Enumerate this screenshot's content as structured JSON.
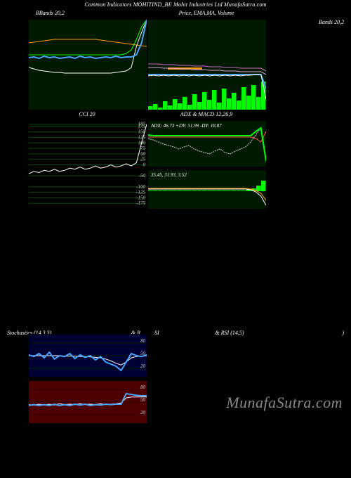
{
  "header": {
    "text": "Common Indicators MOHITIND_BE Mohit Industries Ltd MunafaSutra.com",
    "fontsize": 8
  },
  "watermark": {
    "text": "MunafaSutra.com",
    "fontsize": 22,
    "color": "#888888"
  },
  "global": {
    "background": "#000000",
    "text_color": "#ffffff",
    "font": "Georgia, serif",
    "font_style": "italic"
  },
  "panels": {
    "bb": {
      "title": "BBands 20,2",
      "width": 168,
      "height": 128,
      "bg": "#001a00",
      "series": {
        "candles": {
          "color": "#1e90ff",
          "width": 2
        },
        "upper": {
          "color": "#ffffff",
          "width": 1,
          "values": [
            60,
            58,
            56,
            55,
            54,
            53,
            53,
            52,
            52,
            52,
            52,
            52,
            52,
            52,
            52,
            52,
            52,
            53,
            54,
            55,
            60,
            90,
            110,
            128
          ]
        },
        "lower": {
          "color": "#ff9900",
          "width": 1,
          "values": [
            95,
            96,
            97,
            98,
            99,
            100,
            100,
            100,
            100,
            100,
            100,
            100,
            100,
            100,
            99,
            98,
            97,
            96,
            95,
            94,
            93,
            92,
            91,
            90
          ]
        },
        "mid": {
          "color": "#00ff00",
          "width": 1,
          "values": [
            78,
            78,
            78,
            78,
            78,
            78,
            78,
            78,
            78,
            78,
            78,
            78,
            78,
            78,
            78,
            78,
            78,
            78,
            78,
            80,
            85,
            100,
            118,
            128
          ]
        },
        "close": {
          "color": "#4aa3ff",
          "width": 2,
          "values": [
            74,
            75,
            73,
            76,
            74,
            75,
            73,
            74,
            75,
            73,
            76,
            74,
            75,
            73,
            74,
            75,
            74,
            76,
            74,
            75,
            75,
            78,
            95,
            128
          ]
        }
      }
    },
    "ma": {
      "title": "Price, EMA,MA, Volume",
      "width": 168,
      "height": 128,
      "bg": "#001a00",
      "series": {
        "price": {
          "color": "#ffffff",
          "width": 1,
          "values": [
            48,
            49,
            48,
            49,
            48,
            49,
            48,
            49,
            48,
            49,
            48,
            49,
            48,
            49,
            48,
            49,
            48,
            49,
            48,
            49,
            49,
            50,
            50,
            15
          ]
        },
        "ema": {
          "color": "#4aa3ff",
          "width": 2,
          "values": [
            50,
            50,
            50,
            50,
            50,
            50,
            50,
            50,
            50,
            50,
            50,
            50,
            50,
            50,
            50,
            50,
            50,
            50,
            50,
            50,
            50,
            50,
            50,
            30
          ]
        },
        "ma1": {
          "color": "#dda0dd",
          "width": 1,
          "values": [
            60,
            60,
            60,
            59,
            59,
            59,
            58,
            58,
            58,
            57,
            57,
            57,
            56,
            56,
            56,
            55,
            55,
            55,
            54,
            54,
            54,
            54,
            54,
            50
          ]
        },
        "ma2": {
          "color": "#cc66cc",
          "width": 1,
          "values": [
            65,
            65,
            65,
            64,
            64,
            64,
            63,
            63,
            63,
            62,
            62,
            62,
            61,
            61,
            61,
            60,
            60,
            60,
            59,
            59,
            59,
            59,
            59,
            55
          ]
        }
      },
      "volume": {
        "color": "#00ff00",
        "values": [
          5,
          8,
          3,
          12,
          6,
          15,
          9,
          18,
          7,
          22,
          11,
          25,
          14,
          28,
          10,
          30,
          16,
          24,
          13,
          32,
          20,
          35,
          18,
          40
        ]
      },
      "vol_bar": {
        "color": "#ff9900",
        "start": 4,
        "end": 11,
        "y": 68
      }
    },
    "cci": {
      "title": "CCI 20",
      "width": 168,
      "height": 125,
      "bg": "#000000",
      "gridlines": [
        -175,
        -150,
        -125,
        -100,
        -50,
        0,
        25,
        50,
        75,
        100,
        125,
        150,
        175,
        185
      ],
      "grid_color": "#0a4a0a",
      "series": {
        "color": "#ffffff",
        "width": 1,
        "values": [
          -40,
          -30,
          -35,
          -25,
          -30,
          -20,
          -30,
          -25,
          -15,
          -20,
          -10,
          -20,
          -15,
          -5,
          -15,
          -10,
          0,
          -10,
          -5,
          5,
          -5,
          10,
          100,
          185
        ]
      }
    },
    "adx": {
      "title": "ADX & MACD 12,26,9",
      "width": 168,
      "height": 65,
      "bg": "#001a00",
      "label": "ADX: 46.73 +DY: 51.99 -DY: 18.87",
      "series": {
        "adx": {
          "color": "#cccccc",
          "width": 1,
          "dash": "2,1",
          "values": [
            40,
            38,
            35,
            32,
            30,
            28,
            25,
            28,
            30,
            25,
            22,
            20,
            18,
            22,
            25,
            20,
            18,
            22,
            25,
            28,
            35,
            45,
            55,
            10
          ]
        },
        "plusdi": {
          "color": "#00ff00",
          "width": 2,
          "values": [
            45,
            44,
            44,
            44,
            44,
            44,
            44,
            44,
            44,
            44,
            44,
            44,
            44,
            44,
            44,
            44,
            44,
            44,
            44,
            44,
            44,
            50,
            55,
            8
          ]
        },
        "minusdi": {
          "color": "#ff5555",
          "width": 1,
          "values": [
            42,
            42,
            42,
            42,
            42,
            42,
            42,
            42,
            42,
            42,
            42,
            42,
            42,
            42,
            42,
            42,
            42,
            42,
            42,
            42,
            42,
            40,
            35,
            50
          ]
        }
      }
    },
    "macd": {
      "width": 168,
      "height": 55,
      "bg": "#001a00",
      "label": "35.45, 31.93, 3.52",
      "series": {
        "macd": {
          "color": "#ffffff",
          "width": 1,
          "values": [
            28,
            28,
            28,
            28,
            28,
            28,
            28,
            28,
            28,
            28,
            28,
            28,
            28,
            28,
            28,
            28,
            28,
            28,
            28,
            28,
            27,
            24,
            18,
            5
          ]
        },
        "signal": {
          "color": "#ff9900",
          "width": 1,
          "values": [
            29,
            29,
            29,
            29,
            29,
            29,
            29,
            29,
            29,
            29,
            29,
            29,
            29,
            29,
            29,
            29,
            29,
            29,
            29,
            29,
            28,
            26,
            22,
            12
          ]
        }
      },
      "hist": {
        "color_pos": "#00ff00",
        "color_neg": "#ff0000",
        "values": [
          1,
          1,
          1,
          1,
          1,
          1,
          1,
          1,
          1,
          1,
          1,
          1,
          1,
          1,
          1,
          1,
          1,
          1,
          1,
          1,
          2,
          4,
          8,
          15
        ]
      }
    },
    "stoch": {
      "title_left": "Stochastics (14,3,3)",
      "title_right": "& RSI (14,5)",
      "width": 168,
      "height": 60,
      "bg": "#000033",
      "gridlines": [
        20,
        50,
        80
      ],
      "series": {
        "k": {
          "color": "#4aa3ff",
          "width": 2,
          "values": [
            52,
            48,
            55,
            45,
            58,
            42,
            50,
            48,
            55,
            43,
            52,
            46,
            50,
            40,
            48,
            35,
            30,
            25,
            15,
            35,
            55,
            50,
            48,
            52
          ]
        },
        "d": {
          "color": "#ffffff",
          "width": 1,
          "values": [
            50,
            50,
            50,
            50,
            50,
            50,
            50,
            49,
            49,
            49,
            48,
            48,
            47,
            46,
            45,
            42,
            38,
            32,
            28,
            35,
            45,
            48,
            49,
            50
          ]
        }
      }
    },
    "rsi": {
      "width": 168,
      "height": 60,
      "bg": "#4d0000",
      "gridlines": [
        20,
        50,
        80
      ],
      "series": {
        "rsi1": {
          "color": "#4aa3ff",
          "width": 2,
          "values": [
            42,
            44,
            42,
            44,
            42,
            45,
            42,
            44,
            42,
            45,
            43,
            45,
            42,
            44,
            43,
            45,
            44,
            45,
            45,
            70,
            68,
            66,
            65,
            65
          ]
        },
        "rsi2": {
          "color": "#ffffff",
          "width": 1,
          "values": [
            44,
            43,
            45,
            43,
            45,
            43,
            46,
            44,
            45,
            44,
            46,
            44,
            45,
            44,
            46,
            44,
            45,
            46,
            48,
            60,
            62,
            62,
            62,
            62
          ]
        }
      }
    }
  }
}
